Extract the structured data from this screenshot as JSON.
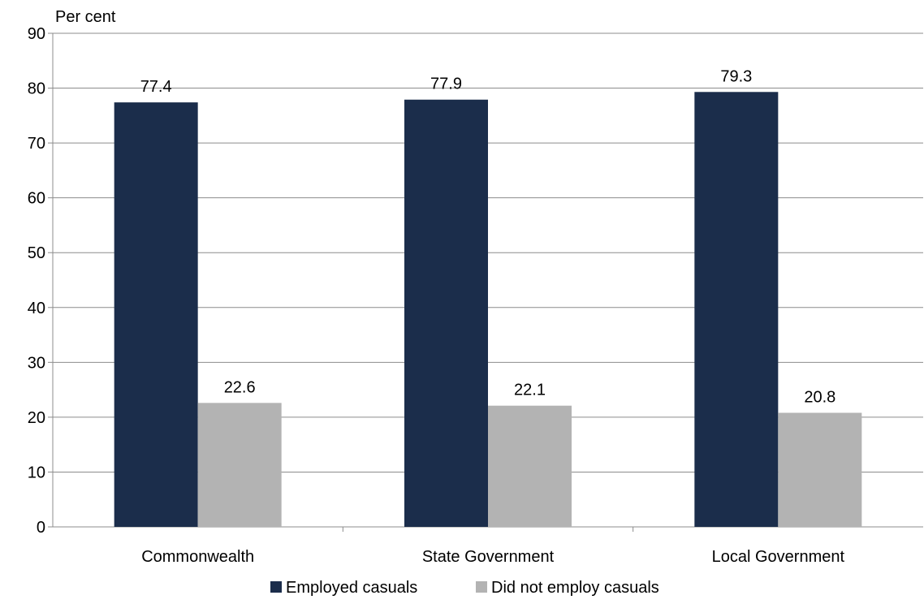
{
  "chart_data": {
    "type": "bar",
    "title": "",
    "xlabel": "",
    "ylabel": "Per cent",
    "ylim": [
      0,
      90
    ],
    "yticks": [
      0,
      10,
      20,
      30,
      40,
      50,
      60,
      70,
      80,
      90
    ],
    "grid": true,
    "legend_position": "bottom",
    "categories": [
      "Commonwealth",
      "State Government",
      "Local Government"
    ],
    "series": [
      {
        "name": "Employed casuals",
        "values": [
          77.4,
          77.9,
          79.3
        ],
        "labels": [
          "77.4",
          "77.9",
          "79.3"
        ],
        "color": "#1b2d4b"
      },
      {
        "name": "Did not employ casuals",
        "values": [
          22.6,
          22.1,
          20.8
        ],
        "labels": [
          "22.6",
          "22.1",
          "20.8"
        ],
        "color": "#b3b3b3"
      }
    ]
  }
}
